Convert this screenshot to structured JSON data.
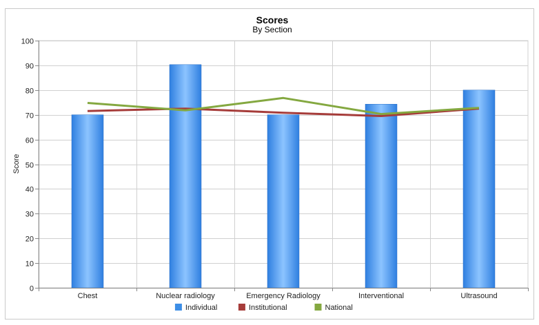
{
  "chart_data": {
    "type": "bar",
    "title": "Scores",
    "subtitle": "By Section",
    "xlabel": "",
    "ylabel": "Score",
    "ylim": [
      0,
      100
    ],
    "yticks": [
      0,
      10,
      20,
      30,
      40,
      50,
      60,
      70,
      80,
      90,
      100
    ],
    "grid": true,
    "legend_position": "bottom",
    "categories": [
      "Chest",
      "Nuclear radiology",
      "Emergency Radiology",
      "Interventional",
      "Ultrasound"
    ],
    "series": [
      {
        "name": "Individual",
        "type": "bar",
        "color": "#3d8ee6",
        "values": [
          70,
          90.3,
          70,
          74.3,
          80
        ]
      },
      {
        "name": "Institutional",
        "type": "line",
        "color": "#a63c3a",
        "values": [
          71.5,
          72.5,
          70.8,
          69.5,
          72.5
        ]
      },
      {
        "name": "National",
        "type": "line",
        "color": "#84a840",
        "values": [
          74.8,
          71.8,
          76.8,
          70.3,
          72.8
        ]
      }
    ]
  }
}
